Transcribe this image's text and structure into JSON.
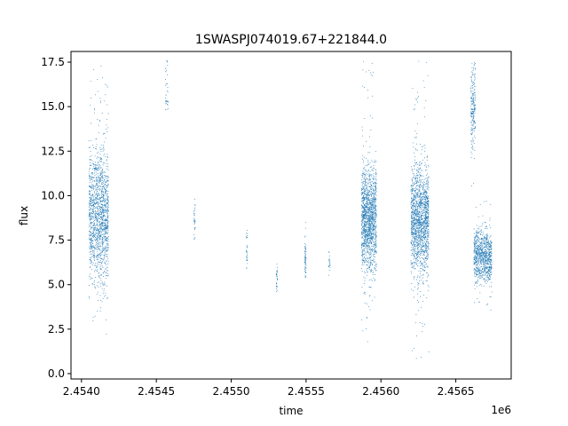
{
  "chart_data": {
    "type": "scatter",
    "title": "1SWASPJ074019.67+221844.0",
    "xlabel": "time",
    "ylabel": "flux",
    "x_offset_label": "1e6",
    "xlim": [
      2.45393,
      2.45687
    ],
    "ylim": [
      -0.3,
      18.1
    ],
    "x_ticks": [
      2.454,
      2.4545,
      2.455,
      2.4555,
      2.456,
      2.4565
    ],
    "x_tick_labels": [
      "2.4540",
      "2.4545",
      "2.4550",
      "2.4555",
      "2.4560",
      "2.4565"
    ],
    "y_ticks": [
      0.0,
      2.5,
      5.0,
      7.5,
      10.0,
      12.5,
      15.0,
      17.5
    ],
    "y_tick_labels": [
      "0.0",
      "2.5",
      "5.0",
      "7.5",
      "10.0",
      "12.5",
      "15.0",
      "17.5"
    ],
    "grid": false,
    "legend": "none",
    "point_color": "#1f77b4",
    "x_unit_multiplier": 1000000,
    "clusters": [
      {
        "x": [
          2.45405,
          2.45418
        ],
        "ymed": 8.8,
        "spread": 1.9,
        "ymin": 2.2,
        "ymax": 17.6,
        "n": 1500
      },
      {
        "x": [
          2.45456,
          2.45458
        ],
        "ymed": 16.0,
        "spread": 0.8,
        "ymin": 11.3,
        "ymax": 17.6,
        "n": 35
      },
      {
        "x": [
          2.45475,
          2.45476
        ],
        "ymed": 8.6,
        "spread": 0.6,
        "ymin": 7.4,
        "ymax": 10.0,
        "n": 30
      },
      {
        "x": [
          2.4551,
          2.45511
        ],
        "ymed": 7.0,
        "spread": 0.5,
        "ymin": 5.8,
        "ymax": 8.1,
        "n": 30
      },
      {
        "x": [
          2.4553,
          2.45531
        ],
        "ymed": 5.4,
        "spread": 0.4,
        "ymin": 4.5,
        "ymax": 6.2,
        "n": 30
      },
      {
        "x": [
          2.45549,
          2.4555
        ],
        "ymed": 6.6,
        "spread": 0.6,
        "ymin": 5.2,
        "ymax": 8.7,
        "n": 60
      },
      {
        "x": [
          2.45565,
          2.45566
        ],
        "ymed": 6.3,
        "spread": 0.4,
        "ymin": 5.3,
        "ymax": 7.3,
        "n": 20
      },
      {
        "x": [
          2.45587,
          2.45597
        ],
        "ymed": 8.7,
        "spread": 1.4,
        "ymin": 1.7,
        "ymax": 17.6,
        "n": 1500
      },
      {
        "x": [
          2.4562,
          2.45632
        ],
        "ymed": 8.6,
        "spread": 1.5,
        "ymin": 0.5,
        "ymax": 17.6,
        "n": 1600
      },
      {
        "x": [
          2.4566,
          2.45663
        ],
        "ymed": 14.8,
        "spread": 1.2,
        "ymin": 10.2,
        "ymax": 17.6,
        "n": 220
      },
      {
        "x": [
          2.45662,
          2.45674
        ],
        "ymed": 6.6,
        "spread": 0.7,
        "ymin": 3.5,
        "ymax": 10.0,
        "n": 900
      }
    ]
  }
}
